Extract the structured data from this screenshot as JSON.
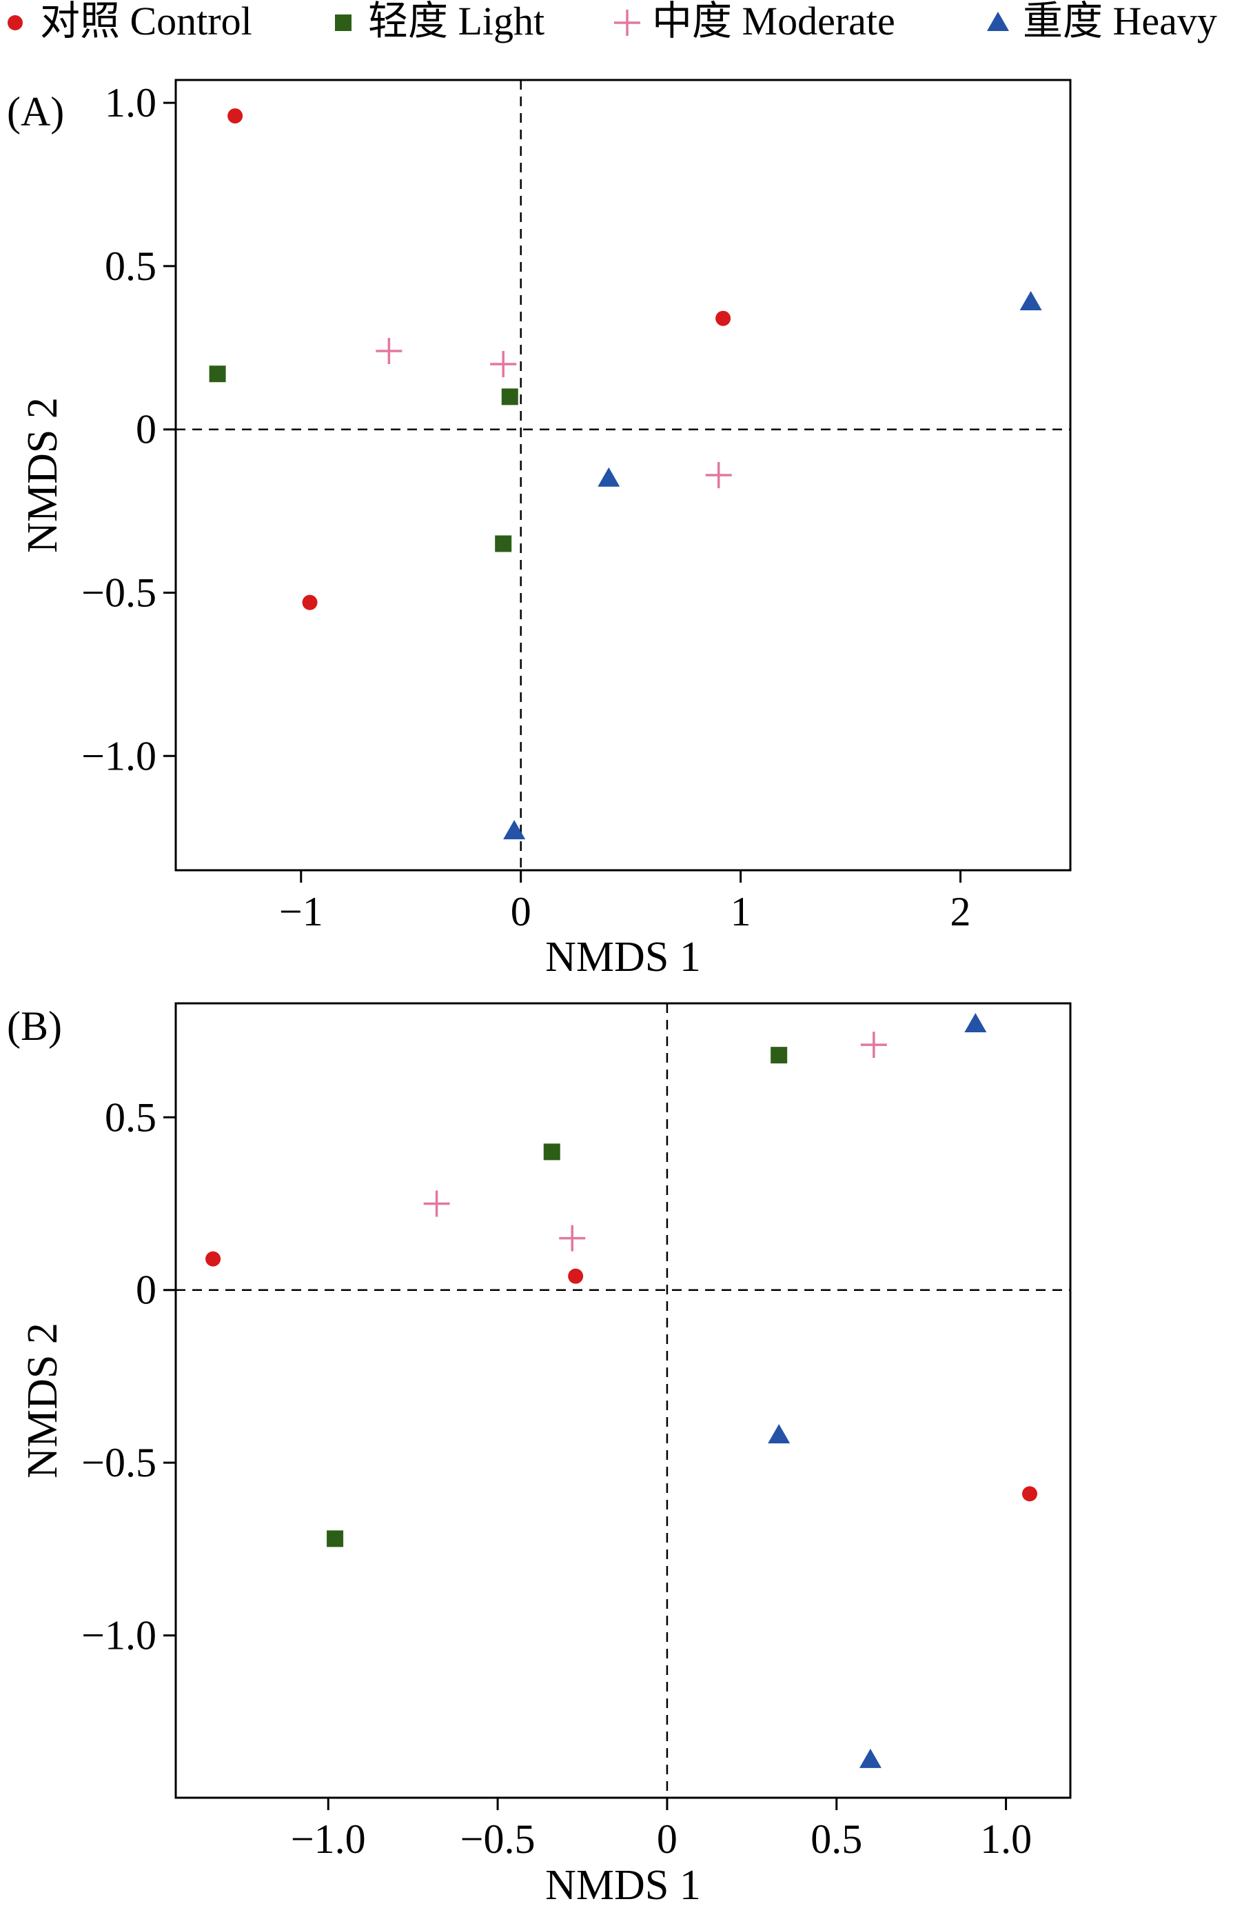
{
  "legend": {
    "placement": "top",
    "items": [
      {
        "label": "对照 Control",
        "color": "#d7191c",
        "marker": "circle"
      },
      {
        "label": "轻度 Light",
        "color": "#2d5e17",
        "marker": "square"
      },
      {
        "label": "中度 Moderate",
        "color": "#e377a0",
        "marker": "plus"
      },
      {
        "label": "重度 Heavy",
        "color": "#2352a6",
        "marker": "triangle"
      }
    ]
  },
  "chart_data": [
    {
      "type": "scatter",
      "panel_label": "(A)",
      "xlabel": "NMDS 1",
      "ylabel": "NMDS 2",
      "xlim": [
        -1.57,
        2.5
      ],
      "ylim": [
        -1.35,
        1.07
      ],
      "xticks": [
        -1,
        0,
        1,
        2
      ],
      "xtick_labels": [
        "−1",
        "0",
        "1",
        "2"
      ],
      "yticks": [
        1.0,
        0.5,
        0,
        -0.5,
        -1.0
      ],
      "ytick_labels": [
        "1.0",
        "0.5",
        "0",
        "−0.5",
        "−1.0"
      ],
      "zero_lines": true,
      "grid": false,
      "series": [
        {
          "name": "对照 Control",
          "marker": "circle",
          "color": "#d7191c",
          "points": [
            [
              -1.3,
              0.96
            ],
            [
              -0.96,
              -0.53
            ],
            [
              0.92,
              0.34
            ]
          ]
        },
        {
          "name": "轻度 Light",
          "marker": "square",
          "color": "#2d5e17",
          "points": [
            [
              -1.38,
              0.17
            ],
            [
              -0.05,
              0.1
            ],
            [
              -0.08,
              -0.35
            ]
          ]
        },
        {
          "name": "中度 Moderate",
          "marker": "plus",
          "color": "#e377a0",
          "points": [
            [
              -0.6,
              0.24
            ],
            [
              -0.08,
              0.2
            ],
            [
              0.9,
              -0.14
            ]
          ]
        },
        {
          "name": "重度 Heavy",
          "marker": "triangle",
          "color": "#2352a6",
          "points": [
            [
              2.32,
              0.39
            ],
            [
              0.4,
              -0.15
            ],
            [
              -0.03,
              -1.23
            ]
          ]
        }
      ]
    },
    {
      "type": "scatter",
      "panel_label": "(B)",
      "xlabel": "NMDS 1",
      "ylabel": "NMDS 2",
      "xlim": [
        -1.45,
        1.19
      ],
      "ylim": [
        -1.47,
        0.83
      ],
      "xticks": [
        -1.0,
        -0.5,
        0,
        0.5,
        1.0
      ],
      "xtick_labels": [
        "−1.0",
        "−0.5",
        "0",
        "0.5",
        "1.0"
      ],
      "yticks": [
        0.5,
        0,
        -0.5,
        -1.0
      ],
      "ytick_labels": [
        "0.5",
        "0",
        "−0.5",
        "−1.0"
      ],
      "zero_lines": true,
      "grid": false,
      "series": [
        {
          "name": "对照 Control",
          "marker": "circle",
          "color": "#d7191c",
          "points": [
            [
              -1.34,
              0.09
            ],
            [
              -0.27,
              0.04
            ],
            [
              1.07,
              -0.59
            ]
          ]
        },
        {
          "name": "轻度 Light",
          "marker": "square",
          "color": "#2d5e17",
          "points": [
            [
              -0.34,
              0.4
            ],
            [
              0.33,
              0.68
            ],
            [
              -0.98,
              -0.72
            ]
          ]
        },
        {
          "name": "中度 Moderate",
          "marker": "plus",
          "color": "#e377a0",
          "points": [
            [
              -0.68,
              0.25
            ],
            [
              -0.28,
              0.15
            ],
            [
              0.61,
              0.71
            ]
          ]
        },
        {
          "name": "重度 Heavy",
          "marker": "triangle",
          "color": "#2352a6",
          "points": [
            [
              0.91,
              0.77
            ],
            [
              0.33,
              -0.42
            ],
            [
              0.6,
              -1.36
            ]
          ]
        }
      ]
    }
  ]
}
